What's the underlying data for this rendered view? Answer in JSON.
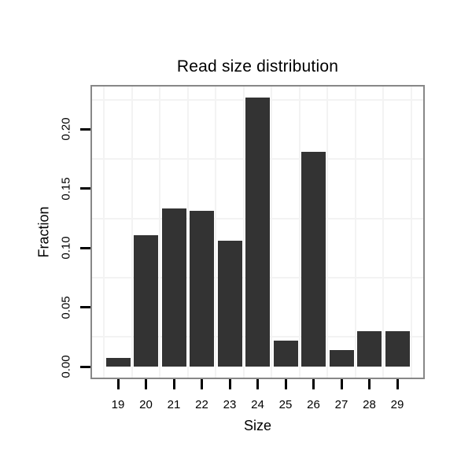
{
  "chart_data": {
    "type": "bar",
    "title": "Read size distribution",
    "xlabel": "Size",
    "ylabel": "Fraction",
    "categories": [
      "19",
      "20",
      "21",
      "22",
      "23",
      "24",
      "25",
      "26",
      "27",
      "28",
      "29"
    ],
    "values": [
      0.007,
      0.111,
      0.133,
      0.131,
      0.106,
      0.227,
      0.022,
      0.181,
      0.014,
      0.03,
      0.03
    ],
    "y_tick_labels": [
      "0.00",
      "0.05",
      "0.10",
      "0.15",
      "0.20"
    ],
    "y_tick_values": [
      0.0,
      0.05,
      0.1,
      0.15,
      0.2
    ],
    "ylim": [
      0,
      0.236
    ],
    "grid": "on",
    "legend": "none",
    "bar_color": "#333333",
    "panel_border_color": "#878787",
    "gridline_color": "#f3f3f3",
    "tick_color": "#000000",
    "text_color": "#000000",
    "background_color": "#ffffff"
  }
}
